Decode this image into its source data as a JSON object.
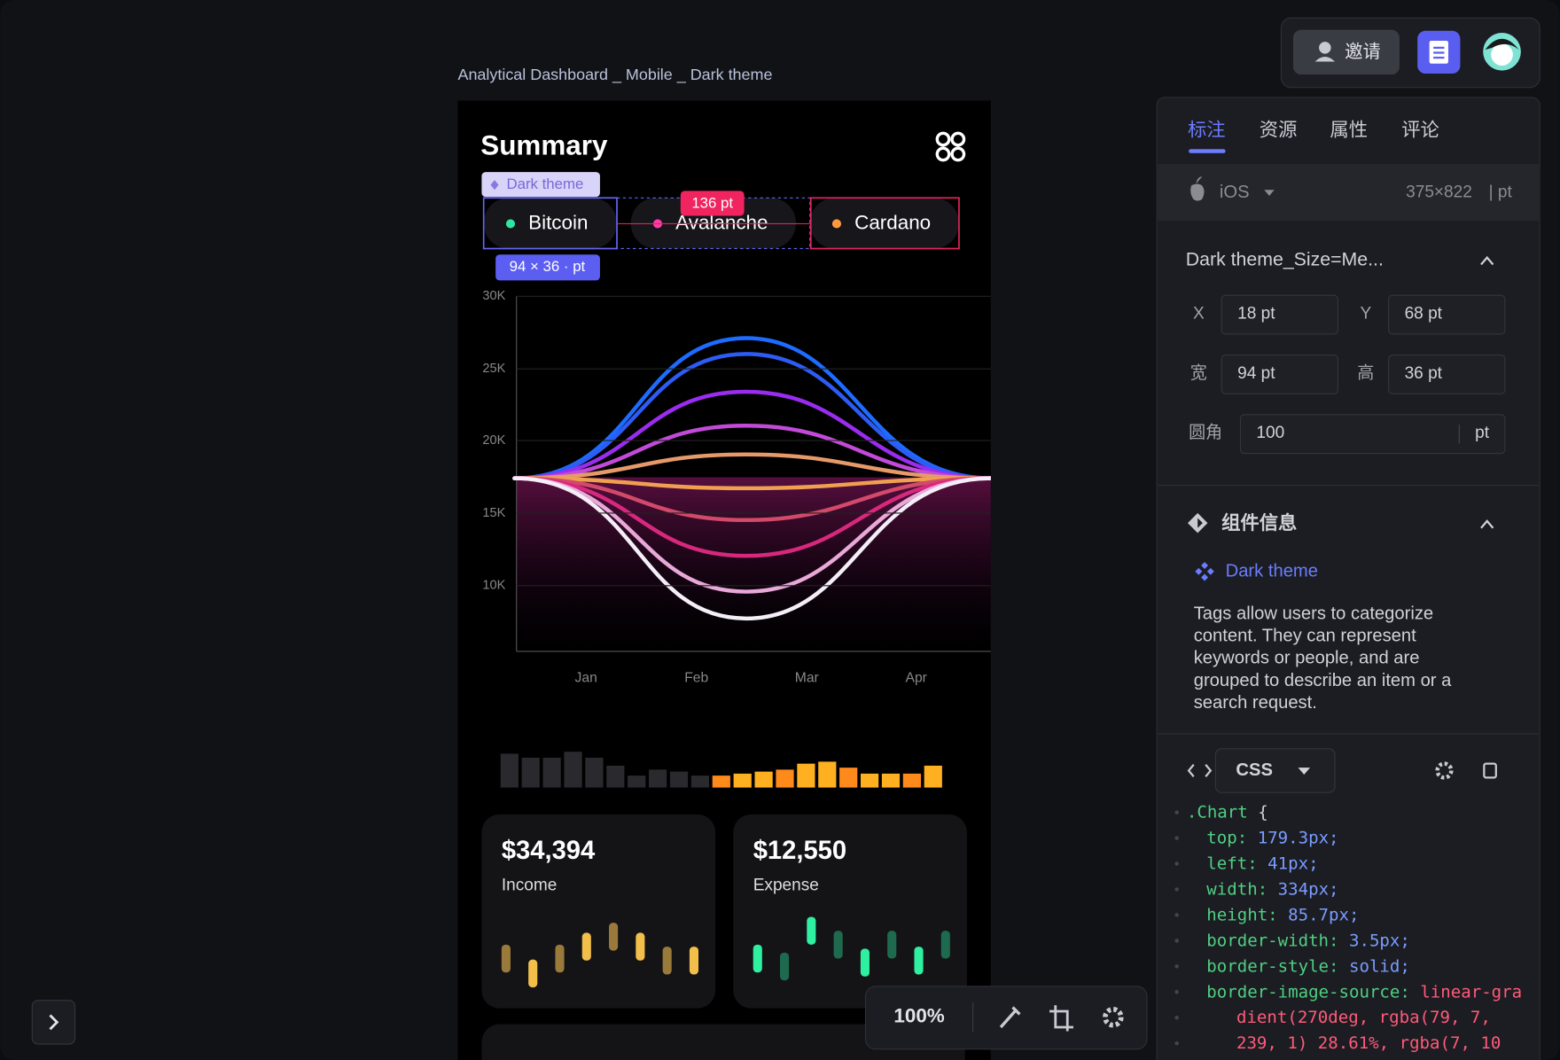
{
  "header": {
    "invite": "邀请"
  },
  "canvas": {
    "frame_title": "Analytical Dashboard _ Mobile _ Dark theme",
    "summary": "Summary",
    "tag": "Dark theme",
    "chips": [
      "Bitcoin",
      "Avalanche",
      "Cardano"
    ],
    "measure_distance": "136 pt",
    "measure_size": "94 × 36 · pt",
    "y_labels": [
      "30K",
      "25K",
      "20K",
      "15K",
      "10K"
    ],
    "x_labels": [
      "Jan",
      "Feb",
      "Mar",
      "Apr"
    ],
    "cards": [
      {
        "amount": "$34,394",
        "label": "Income"
      },
      {
        "amount": "$12,550",
        "label": "Expense"
      }
    ]
  },
  "toolbar": {
    "zoom": "100%"
  },
  "panel": {
    "tabs": [
      "标注",
      "资源",
      "属性",
      "评论"
    ],
    "platform": "iOS",
    "size": "375×822",
    "unit": "| pt",
    "layer_name": "Dark theme_Size=Me...",
    "fields": [
      {
        "label": "X",
        "value": "18 pt"
      },
      {
        "label": "Y",
        "value": "68 pt"
      },
      {
        "label": "宽",
        "value": "94 pt"
      },
      {
        "label": "高",
        "value": "36 pt"
      }
    ],
    "radius_label": "圆角",
    "radius": "100",
    "radius_unit": "pt",
    "component_title": "组件信息",
    "component_name": "Dark theme",
    "description": [
      "Tags allow users to categorize",
      "content. They can represent",
      "keywords or people, and are",
      "grouped to describe an item or a",
      "search request."
    ],
    "code_lang": "CSS",
    "code": [
      [
        ".Chart",
        " {"
      ],
      [
        "top:",
        " 179.3px;"
      ],
      [
        "left:",
        " 41px;"
      ],
      [
        "width:",
        " 334px;"
      ],
      [
        "height:",
        " 85.7px;"
      ],
      [
        "border-width:",
        " 3.5px;"
      ],
      [
        "border-style:",
        " solid;"
      ],
      [
        "border-image-source:",
        " linear-gra"
      ],
      [
        "dient(270deg,",
        " rgba(79, 7,"
      ],
      [
        "239, 1) 28.61%,",
        " rgba(7, 10"
      ]
    ]
  }
}
